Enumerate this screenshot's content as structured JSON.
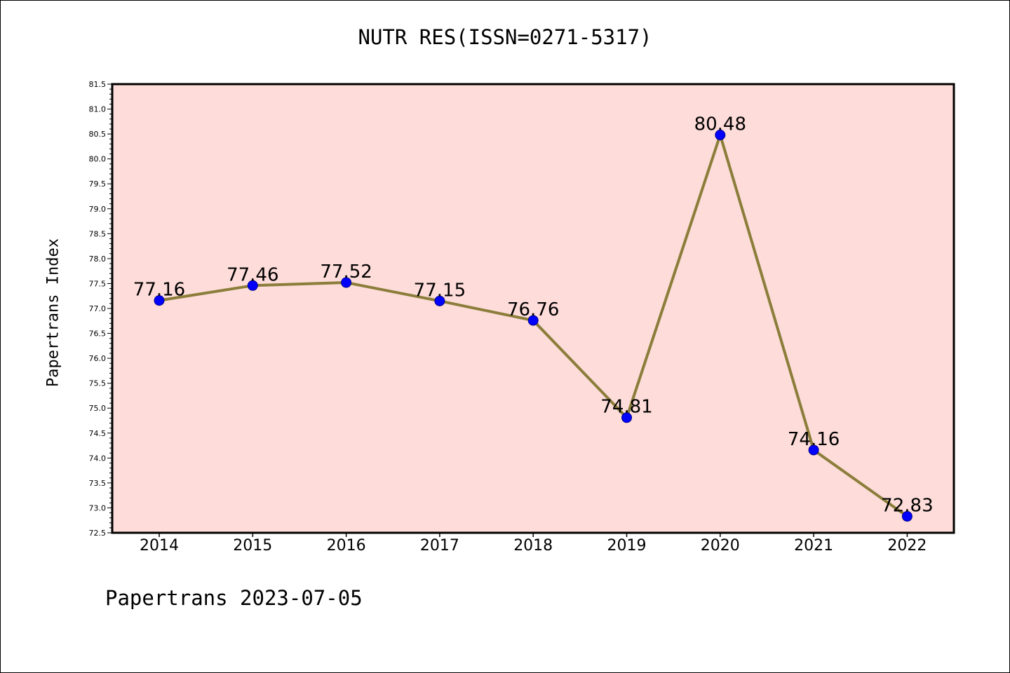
{
  "chart_data": {
    "type": "line",
    "title": "NUTR RES(ISSN=0271-5317)",
    "xlabel": "",
    "ylabel": "Papertrans Index",
    "categories": [
      "2014",
      "2015",
      "2016",
      "2017",
      "2018",
      "2019",
      "2020",
      "2021",
      "2022"
    ],
    "series": [
      {
        "values": [
          77.16,
          77.46,
          77.52,
          77.15,
          76.76,
          74.81,
          80.48,
          74.16,
          72.83
        ],
        "labels": [
          "77.16",
          "77.46",
          "77.52",
          "77.15",
          "76.76",
          "74.81",
          "80.48",
          "74.16",
          "72.83"
        ]
      }
    ],
    "ylim": [
      72.5,
      81.5
    ],
    "yticks": [
      "72.5",
      "73.0",
      "73.5",
      "74.0",
      "74.5",
      "75.0",
      "75.5",
      "76.0",
      "76.5",
      "77.0",
      "77.5",
      "78.0",
      "78.5",
      "79.0",
      "79.5",
      "80.0",
      "80.5",
      "81.0",
      "81.5"
    ],
    "grid": false,
    "colors": {
      "plot_bg": "#fddcd9",
      "line": "#8b7d3a",
      "marker": "#0000ff"
    }
  },
  "footer": "Papertrans 2023-07-05"
}
